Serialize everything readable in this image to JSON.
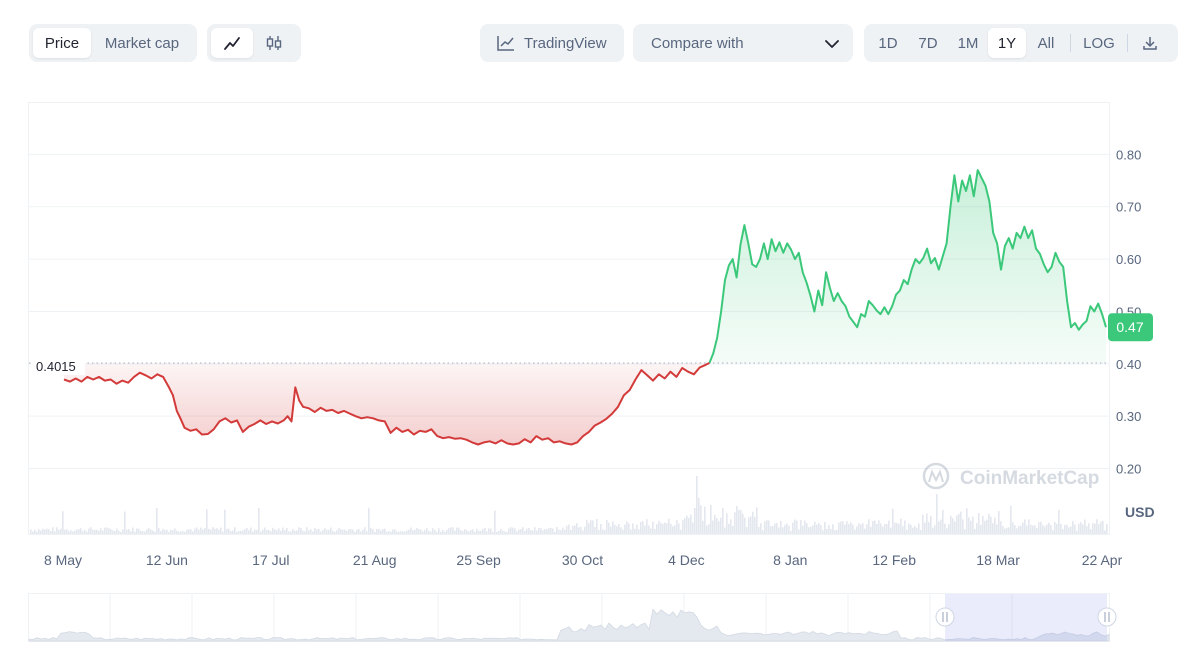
{
  "toolbar": {
    "price_label": "Price",
    "market_cap_label": "Market cap",
    "tradingview_label": "TradingView",
    "compare_label": "Compare with",
    "ranges": [
      "1D",
      "7D",
      "1M",
      "1Y",
      "All"
    ],
    "active_range": "1Y",
    "log_label": "LOG"
  },
  "chart_data": {
    "type": "area",
    "x_ticks": [
      "8 May",
      "12 Jun",
      "17 Jul",
      "21 Aug",
      "25 Sep",
      "30 Oct",
      "4 Dec",
      "8 Jan",
      "12 Feb",
      "18 Mar",
      "22 Apr"
    ],
    "y_ticks": [
      "0.80",
      "0.70",
      "0.60",
      "0.50",
      "0.40",
      "0.30",
      "0.20"
    ],
    "ylim": [
      0.075,
      0.9
    ],
    "unit_label": "USD",
    "baseline_value": 0.4015,
    "baseline_label": "0.4015",
    "current_value": 0.47,
    "current_label": "0.47",
    "watermark": "CoinMarketCap",
    "colors": {
      "up": "#3cc87a",
      "down": "#d33a3a",
      "up_fill": "#e4f6ec",
      "down_fill": "#f8dede"
    },
    "series": [
      {
        "values": [
          [
            0.0,
            0.37
          ],
          [
            1.5,
            0.366
          ],
          [
            3.0,
            0.372
          ],
          [
            4.5,
            0.366
          ],
          [
            6.0,
            0.375
          ],
          [
            7.5,
            0.37
          ],
          [
            9.0,
            0.375
          ],
          [
            10.5,
            0.368
          ],
          [
            12.0,
            0.37
          ],
          [
            13.5,
            0.362
          ],
          [
            15.0,
            0.368
          ],
          [
            16.5,
            0.364
          ],
          [
            18.0,
            0.375
          ],
          [
            19.5,
            0.383
          ],
          [
            21.0,
            0.378
          ],
          [
            22.5,
            0.372
          ],
          [
            24.0,
            0.38
          ],
          [
            25.5,
            0.375
          ],
          [
            27.0,
            0.355
          ],
          [
            28.0,
            0.34
          ],
          [
            29.0,
            0.31
          ],
          [
            30.0,
            0.295
          ],
          [
            31.0,
            0.278
          ],
          [
            32.5,
            0.272
          ],
          [
            34.0,
            0.275
          ],
          [
            35.5,
            0.265
          ],
          [
            37.0,
            0.266
          ],
          [
            38.5,
            0.275
          ],
          [
            40.0,
            0.29
          ],
          [
            41.5,
            0.296
          ],
          [
            43.0,
            0.288
          ],
          [
            44.5,
            0.292
          ],
          [
            46.0,
            0.27
          ],
          [
            47.5,
            0.28
          ],
          [
            49.0,
            0.285
          ],
          [
            50.5,
            0.292
          ],
          [
            52.0,
            0.285
          ],
          [
            53.5,
            0.29
          ],
          [
            55.0,
            0.286
          ],
          [
            56.5,
            0.292
          ],
          [
            57.5,
            0.3
          ],
          [
            58.5,
            0.29
          ],
          [
            59.5,
            0.355
          ],
          [
            60.5,
            0.33
          ],
          [
            61.5,
            0.318
          ],
          [
            63.0,
            0.315
          ],
          [
            64.5,
            0.308
          ],
          [
            66.0,
            0.316
          ],
          [
            67.5,
            0.31
          ],
          [
            69.0,
            0.312
          ],
          [
            70.5,
            0.306
          ],
          [
            72.0,
            0.31
          ],
          [
            73.5,
            0.305
          ],
          [
            75.0,
            0.3
          ],
          [
            76.5,
            0.296
          ],
          [
            78.0,
            0.298
          ],
          [
            79.5,
            0.296
          ],
          [
            81.0,
            0.292
          ],
          [
            82.5,
            0.29
          ],
          [
            84.0,
            0.268
          ],
          [
            85.5,
            0.278
          ],
          [
            87.0,
            0.27
          ],
          [
            88.5,
            0.274
          ],
          [
            90.0,
            0.265
          ],
          [
            91.5,
            0.272
          ],
          [
            93.0,
            0.27
          ],
          [
            94.5,
            0.275
          ],
          [
            96.0,
            0.262
          ],
          [
            97.5,
            0.258
          ],
          [
            99.0,
            0.26
          ],
          [
            100.5,
            0.257
          ],
          [
            102.0,
            0.258
          ],
          [
            103.5,
            0.255
          ],
          [
            105.0,
            0.25
          ],
          [
            106.5,
            0.246
          ],
          [
            108.0,
            0.25
          ],
          [
            109.5,
            0.252
          ],
          [
            111.0,
            0.248
          ],
          [
            112.5,
            0.254
          ],
          [
            114.0,
            0.248
          ],
          [
            115.5,
            0.246
          ],
          [
            117.0,
            0.248
          ],
          [
            118.5,
            0.256
          ],
          [
            120.0,
            0.25
          ],
          [
            121.5,
            0.262
          ],
          [
            123.0,
            0.255
          ],
          [
            124.5,
            0.258
          ],
          [
            126.0,
            0.25
          ],
          [
            127.5,
            0.252
          ],
          [
            129.0,
            0.248
          ],
          [
            130.5,
            0.246
          ],
          [
            132.0,
            0.25
          ],
          [
            133.5,
            0.262
          ],
          [
            135.0,
            0.27
          ],
          [
            136.5,
            0.282
          ],
          [
            138.0,
            0.288
          ],
          [
            139.5,
            0.295
          ],
          [
            141.0,
            0.305
          ],
          [
            142.5,
            0.318
          ],
          [
            144.0,
            0.34
          ],
          [
            145.5,
            0.35
          ],
          [
            147.0,
            0.37
          ],
          [
            148.5,
            0.388
          ],
          [
            150.0,
            0.378
          ],
          [
            151.5,
            0.368
          ],
          [
            153.0,
            0.38
          ],
          [
            154.5,
            0.372
          ],
          [
            156.0,
            0.385
          ],
          [
            157.5,
            0.375
          ],
          [
            159.0,
            0.392
          ],
          [
            160.5,
            0.385
          ],
          [
            162.0,
            0.38
          ],
          [
            163.5,
            0.393
          ],
          [
            165.0,
            0.398
          ],
          [
            166.0,
            0.4015
          ],
          [
            167.0,
            0.42
          ],
          [
            168.0,
            0.45
          ],
          [
            169.0,
            0.5
          ],
          [
            170.0,
            0.56
          ],
          [
            171.0,
            0.588
          ],
          [
            172.0,
            0.6
          ],
          [
            173.0,
            0.565
          ],
          [
            174.0,
            0.628
          ],
          [
            175.0,
            0.665
          ],
          [
            176.0,
            0.63
          ],
          [
            177.0,
            0.59
          ],
          [
            178.0,
            0.585
          ],
          [
            179.0,
            0.6
          ],
          [
            180.0,
            0.63
          ],
          [
            181.0,
            0.6
          ],
          [
            182.0,
            0.638
          ],
          [
            183.0,
            0.615
          ],
          [
            184.0,
            0.632
          ],
          [
            185.0,
            0.612
          ],
          [
            186.0,
            0.63
          ],
          [
            187.0,
            0.618
          ],
          [
            188.0,
            0.6
          ],
          [
            189.0,
            0.612
          ],
          [
            190.0,
            0.575
          ],
          [
            191.0,
            0.555
          ],
          [
            192.0,
            0.53
          ],
          [
            193.0,
            0.5
          ],
          [
            194.0,
            0.54
          ],
          [
            195.0,
            0.512
          ],
          [
            196.0,
            0.575
          ],
          [
            197.0,
            0.545
          ],
          [
            198.0,
            0.52
          ],
          [
            199.0,
            0.535
          ],
          [
            200.0,
            0.52
          ],
          [
            201.0,
            0.51
          ],
          [
            202.0,
            0.49
          ],
          [
            203.0,
            0.48
          ],
          [
            204.0,
            0.47
          ],
          [
            205.0,
            0.495
          ],
          [
            206.0,
            0.49
          ],
          [
            207.0,
            0.52
          ],
          [
            208.0,
            0.512
          ],
          [
            209.0,
            0.502
          ],
          [
            210.0,
            0.495
          ],
          [
            211.0,
            0.508
          ],
          [
            212.0,
            0.495
          ],
          [
            213.0,
            0.51
          ],
          [
            214.0,
            0.532
          ],
          [
            215.0,
            0.54
          ],
          [
            216.0,
            0.56
          ],
          [
            217.0,
            0.552
          ],
          [
            218.0,
            0.58
          ],
          [
            219.0,
            0.6
          ],
          [
            220.0,
            0.592
          ],
          [
            221.0,
            0.602
          ],
          [
            222.0,
            0.62
          ],
          [
            223.0,
            0.592
          ],
          [
            224.0,
            0.602
          ],
          [
            225.0,
            0.58
          ],
          [
            226.0,
            0.605
          ],
          [
            227.0,
            0.63
          ],
          [
            228.0,
            0.7
          ],
          [
            229.0,
            0.76
          ],
          [
            230.0,
            0.71
          ],
          [
            231.0,
            0.75
          ],
          [
            232.0,
            0.73
          ],
          [
            233.0,
            0.76
          ],
          [
            234.0,
            0.72
          ],
          [
            235.0,
            0.77
          ],
          [
            236.0,
            0.755
          ],
          [
            237.0,
            0.74
          ],
          [
            238.0,
            0.71
          ],
          [
            239.0,
            0.65
          ],
          [
            240.0,
            0.63
          ],
          [
            241.0,
            0.58
          ],
          [
            242.0,
            0.625
          ],
          [
            243.0,
            0.64
          ],
          [
            244.0,
            0.62
          ],
          [
            245.0,
            0.65
          ],
          [
            246.0,
            0.64
          ],
          [
            247.0,
            0.662
          ],
          [
            248.0,
            0.64
          ],
          [
            249.0,
            0.655
          ],
          [
            250.0,
            0.62
          ],
          [
            251.0,
            0.61
          ],
          [
            252.0,
            0.59
          ],
          [
            253.0,
            0.575
          ],
          [
            254.0,
            0.585
          ],
          [
            255.0,
            0.612
          ],
          [
            256.0,
            0.595
          ],
          [
            257.0,
            0.585
          ],
          [
            258.0,
            0.52
          ],
          [
            259.0,
            0.47
          ],
          [
            260.0,
            0.478
          ],
          [
            261.0,
            0.465
          ],
          [
            262.0,
            0.475
          ],
          [
            263.0,
            0.482
          ],
          [
            264.0,
            0.51
          ],
          [
            265.0,
            0.5
          ],
          [
            266.0,
            0.515
          ],
          [
            267.0,
            0.495
          ],
          [
            268.0,
            0.47
          ]
        ]
      }
    ]
  }
}
